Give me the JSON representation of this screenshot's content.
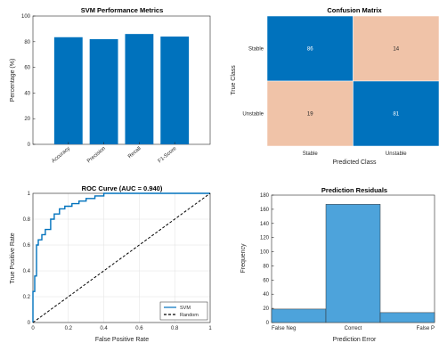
{
  "colors": {
    "bar": "#0072BD",
    "axis": "#262626",
    "grid": "#e0e0e0",
    "cm_high": "#0072BD",
    "cm_low": "#F0C3A8",
    "hist": "#4DA3DB",
    "hist_edge": "#333333",
    "roc": "#0072BD",
    "random": "#000000"
  },
  "chart_data": [
    {
      "type": "bar",
      "title": "SVM Performance Metrics",
      "ylabel": "Percentage (%)",
      "xlabel": "",
      "categories": [
        "Accuracy",
        "Precision",
        "Recall",
        "F1-Score"
      ],
      "values": [
        83.5,
        82,
        86,
        84
      ],
      "ylim": [
        0,
        100
      ],
      "yticks": [
        "0",
        "20",
        "40",
        "60",
        "80",
        "100"
      ],
      "grid": false
    },
    {
      "type": "heatmap",
      "title": "Confusion Matrix",
      "xlabel": "Predicted Class",
      "ylabel": "True Class",
      "x_categories": [
        "Stable",
        "Unstable"
      ],
      "y_categories": [
        "Stable",
        "Unstable"
      ],
      "values": [
        [
          86,
          14
        ],
        [
          19,
          81
        ]
      ]
    },
    {
      "type": "line",
      "title": "ROC Curve (AUC = 0.940)",
      "xlabel": "False Positive Rate",
      "ylabel": "True Positive Rate",
      "xlim": [
        0,
        1
      ],
      "ylim": [
        0,
        1
      ],
      "xticks": [
        "0",
        "0.2",
        "0.4",
        "0.6",
        "0.8",
        "1"
      ],
      "yticks": [
        "0",
        "0.2",
        "0.4",
        "0.6",
        "0.8",
        "1"
      ],
      "legend": "bottom-right",
      "series": [
        {
          "name": "SVM",
          "x": [
            0,
            0,
            0.01,
            0.01,
            0.02,
            0.02,
            0.03,
            0.03,
            0.05,
            0.05,
            0.07,
            0.07,
            0.1,
            0.1,
            0.12,
            0.12,
            0.15,
            0.15,
            0.18,
            0.18,
            0.22,
            0.22,
            0.26,
            0.26,
            0.3,
            0.3,
            0.35,
            0.35,
            0.4,
            0.4,
            0.5,
            0.7,
            1
          ],
          "y": [
            0,
            0.24,
            0.24,
            0.36,
            0.36,
            0.6,
            0.6,
            0.64,
            0.64,
            0.68,
            0.68,
            0.72,
            0.72,
            0.8,
            0.8,
            0.84,
            0.84,
            0.88,
            0.88,
            0.9,
            0.9,
            0.92,
            0.92,
            0.94,
            0.94,
            0.96,
            0.96,
            0.98,
            0.98,
            1,
            1,
            1,
            1
          ]
        },
        {
          "name": "Random",
          "x": [
            0,
            1
          ],
          "y": [
            0,
            1
          ],
          "dashed": true
        }
      ]
    },
    {
      "type": "bar",
      "title": "Prediction Residuals",
      "xlabel": "Prediction Error",
      "ylabel": "Frequency",
      "categories": [
        "False Neg",
        "Correct",
        "False P"
      ],
      "values": [
        19,
        167,
        14
      ],
      "ylim": [
        0,
        180
      ],
      "yticks": [
        "0",
        "20",
        "40",
        "60",
        "80",
        "100",
        "120",
        "140",
        "160",
        "180"
      ]
    }
  ]
}
